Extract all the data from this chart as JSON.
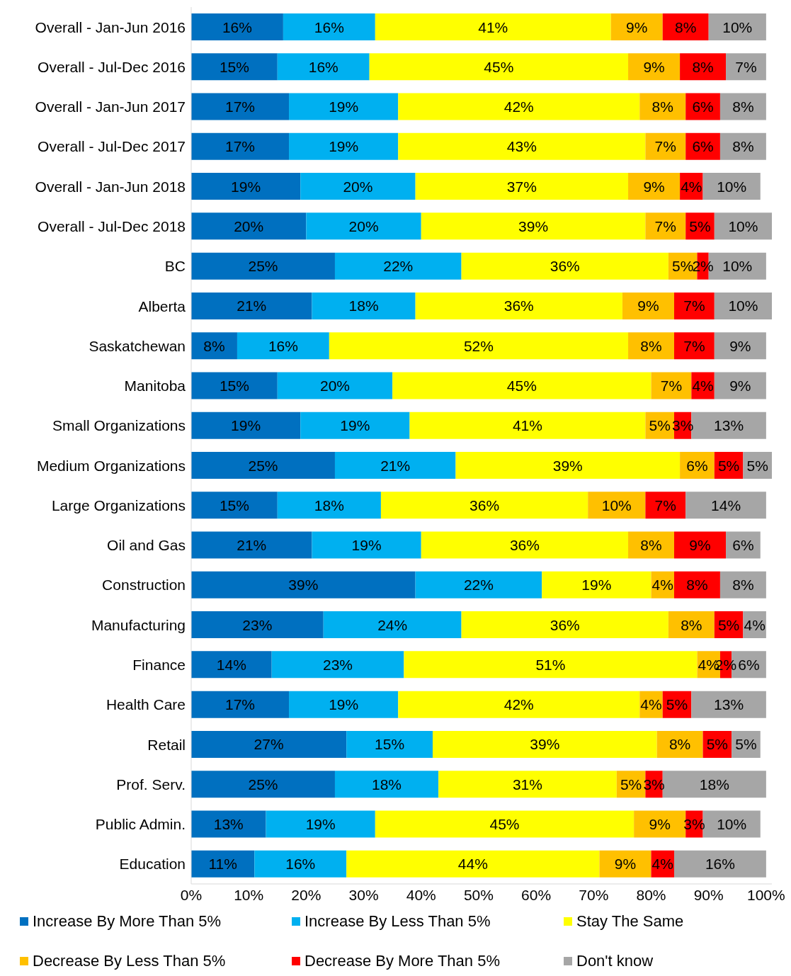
{
  "chart_data": {
    "type": "bar",
    "orientation": "horizontal",
    "stacked": true,
    "legend": "bottom",
    "grid": false,
    "categories": [
      "Overall - Jan-Jun 2016",
      "Overall - Jul-Dec 2016",
      "Overall - Jan-Jun 2017",
      "Overall - Jul-Dec 2017",
      "Overall - Jan-Jun 2018",
      "Overall - Jul-Dec 2018",
      "BC",
      "Alberta",
      "Saskatchewan",
      "Manitoba",
      "Small Organizations",
      "Medium Organizations",
      "Large Organizations",
      "Oil and Gas",
      "Construction",
      "Manufacturing",
      "Finance",
      "Health Care",
      "Retail",
      "Prof. Serv.",
      "Public Admin.",
      "Education"
    ],
    "xlim": [
      0,
      101
    ],
    "xticks": [
      {
        "value": 0,
        "label": "0%"
      },
      {
        "value": 10,
        "label": "10%"
      },
      {
        "value": 20,
        "label": "20%"
      },
      {
        "value": 30,
        "label": "30%"
      },
      {
        "value": 40,
        "label": "40%"
      },
      {
        "value": 50,
        "label": "50%"
      },
      {
        "value": 60,
        "label": "60%"
      },
      {
        "value": 70,
        "label": "70%"
      },
      {
        "value": 80,
        "label": "80%"
      },
      {
        "value": 90,
        "label": "90%"
      },
      {
        "value": 100,
        "label": "100%"
      }
    ],
    "series": [
      {
        "name": "Increase By More Than 5%",
        "color": "#0070c0",
        "values": [
          16,
          15,
          17,
          17,
          19,
          20,
          25,
          21,
          8,
          15,
          19,
          25,
          15,
          21,
          39,
          23,
          14,
          17,
          27,
          25,
          13,
          11
        ],
        "value_labels": [
          "16%",
          "15%",
          "17%",
          "17%",
          "19%",
          "20%",
          "25%",
          "21%",
          "8%",
          "15%",
          "19%",
          "25%",
          "15%",
          "21%",
          "39%",
          "23%",
          "14%",
          "17%",
          "27%",
          "25%",
          "13%",
          "11%"
        ]
      },
      {
        "name": "Increase By Less Than 5%",
        "color": "#00b0f0",
        "values": [
          16,
          16,
          19,
          19,
          20,
          20,
          22,
          18,
          16,
          20,
          19,
          21,
          18,
          19,
          22,
          24,
          23,
          19,
          15,
          18,
          19,
          16
        ],
        "value_labels": [
          "16%",
          "16%",
          "19%",
          "19%",
          "20%",
          "20%",
          "22%",
          "18%",
          "16%",
          "20%",
          "19%",
          "21%",
          "18%",
          "19%",
          "22%",
          "24%",
          "23%",
          "19%",
          "15%",
          "18%",
          "19%",
          "16%"
        ]
      },
      {
        "name": "Stay The Same",
        "color": "#ffff00",
        "values": [
          41,
          45,
          42,
          43,
          37,
          39,
          36,
          36,
          52,
          45,
          41,
          39,
          36,
          36,
          19,
          36,
          51,
          42,
          39,
          31,
          45,
          44
        ],
        "value_labels": [
          "41%",
          "45%",
          "42%",
          "43%",
          "37%",
          "39%",
          "36%",
          "36%",
          "52%",
          "45%",
          "41%",
          "39%",
          "36%",
          "36%",
          "19%",
          "36%",
          "51%",
          "42%",
          "39%",
          "31%",
          "45%",
          "44%"
        ]
      },
      {
        "name": "Decrease By Less Than 5%",
        "color": "#ffc000",
        "values": [
          9,
          9,
          8,
          7,
          9,
          7,
          5,
          9,
          8,
          7,
          5,
          6,
          10,
          8,
          4,
          8,
          4,
          4,
          8,
          5,
          9,
          9
        ],
        "value_labels": [
          "9%",
          "9%",
          "8%",
          "7%",
          "9%",
          "7%",
          "5%",
          "9%",
          "8%",
          "7%",
          "5%",
          "6%",
          "10%",
          "8%",
          "4%",
          "8%",
          "4%",
          "4%",
          "8%",
          "5%",
          "9%",
          "9%"
        ]
      },
      {
        "name": "Decrease By More Than 5%",
        "color": "#ff0000",
        "values": [
          8,
          8,
          6,
          6,
          4,
          5,
          2,
          7,
          7,
          4,
          3,
          5,
          7,
          9,
          8,
          5,
          2,
          5,
          5,
          3,
          3,
          4
        ],
        "value_labels": [
          "8%",
          "8%",
          "6%",
          "6%",
          "4%",
          "5%",
          "2%",
          "7%",
          "7%",
          "4%",
          "3%",
          "5%",
          "7%",
          "9%",
          "8%",
          "5%",
          "2%",
          "5%",
          "5%",
          "3%",
          "3%",
          "4%"
        ]
      },
      {
        "name": "Don't know",
        "color": "#a6a6a6",
        "values": [
          10,
          7,
          8,
          8,
          10,
          10,
          10,
          10,
          9,
          9,
          13,
          5,
          14,
          6,
          8,
          4,
          6,
          13,
          5,
          18,
          10,
          16
        ],
        "value_labels": [
          "10%",
          "7%",
          "8%",
          "8%",
          "10%",
          "10%",
          "10%",
          "10%",
          "9%",
          "9%",
          "13%",
          "5%",
          "14%",
          "6%",
          "8%",
          "4%",
          "6%",
          "13%",
          "5%",
          "18%",
          "10%",
          "16%"
        ]
      }
    ]
  }
}
